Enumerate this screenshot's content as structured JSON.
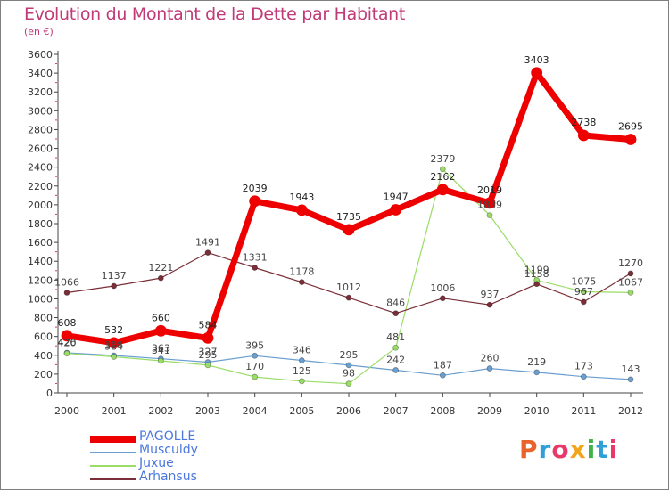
{
  "title": "Evolution du Montant de la Dette par Habitant",
  "subtitle": "(en €)",
  "logo": {
    "text": "Proxiti",
    "letter_colors": [
      "#e8642a",
      "#2f9fd8",
      "#e83a6a",
      "#f2a51a",
      "#3fb34a",
      "#2f9fd8",
      "#e83a6a"
    ]
  },
  "chart_data": {
    "type": "line",
    "x": [
      2000,
      2001,
      2002,
      2003,
      2004,
      2005,
      2006,
      2007,
      2008,
      2009,
      2010,
      2011,
      2012
    ],
    "ylim": [
      0,
      3600
    ],
    "yticks": [
      0,
      200,
      400,
      600,
      800,
      1000,
      1200,
      1400,
      1600,
      1800,
      2000,
      2200,
      2400,
      2600,
      2800,
      3000,
      3200,
      3400,
      3600
    ],
    "grid": false,
    "legend_position": "bottom-left",
    "series": [
      {
        "name": "PAGOLLE",
        "color": "#ee0000",
        "values": [
          608,
          532,
          660,
          584,
          2039,
          1943,
          1735,
          1947,
          2162,
          2019,
          3403,
          2738,
          2695
        ]
      },
      {
        "name": "Musculdy",
        "color": "#6b9fd0",
        "values": [
          426,
          398,
          363,
          327,
          395,
          346,
          295,
          242,
          187,
          260,
          219,
          173,
          143
        ]
      },
      {
        "name": "Juxue",
        "color": "#99dd66",
        "values": [
          420,
          384,
          341,
          295,
          170,
          125,
          98,
          481,
          2379,
          1889,
          1199,
          1075,
          1067
        ]
      },
      {
        "name": "Arhansus",
        "color": "#7a2e38",
        "values": [
          1066,
          1137,
          1221,
          1491,
          1331,
          1178,
          1012,
          846,
          1006,
          937,
          1158,
          967,
          1270
        ]
      }
    ]
  }
}
